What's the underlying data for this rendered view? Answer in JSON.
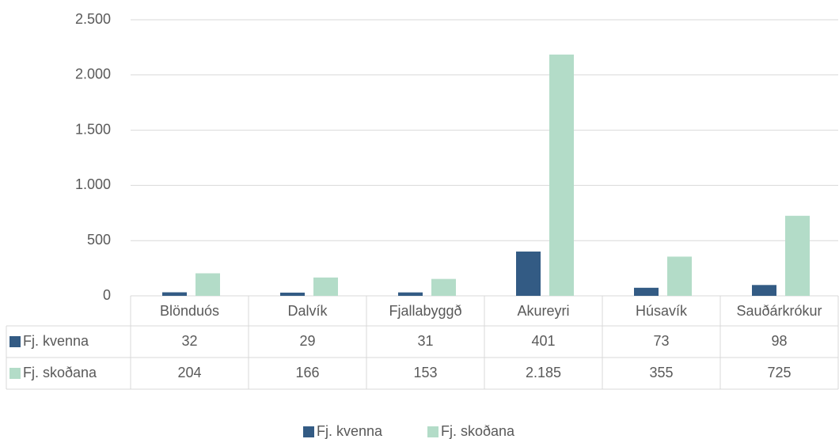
{
  "chart_data": {
    "type": "bar",
    "categories": [
      "Blönduós",
      "Dalvík",
      "Fjallabyggð",
      "Akureyri",
      "Húsavík",
      "Sauðárkrókur"
    ],
    "series": [
      {
        "name": "Fj. kvenna",
        "color": "#335b84",
        "values": [
          32,
          29,
          31,
          401,
          73,
          98
        ]
      },
      {
        "name": "Fj. skoðana",
        "color": "#b3dcc8",
        "values": [
          204,
          166,
          153,
          2185,
          355,
          725
        ],
        "value_labels": [
          "204",
          "166",
          "153",
          "2.185",
          "355",
          "725"
        ]
      }
    ],
    "ylim": [
      0,
      2500
    ],
    "yticks": [
      0,
      500,
      {
        "value": 1000,
        "label": "1.000"
      },
      {
        "value": 1500,
        "label": "1.500"
      },
      {
        "value": 2000,
        "label": "2.000"
      },
      {
        "value": 2500,
        "label": "2.500"
      }
    ],
    "grid": true,
    "legend": "bottom"
  }
}
